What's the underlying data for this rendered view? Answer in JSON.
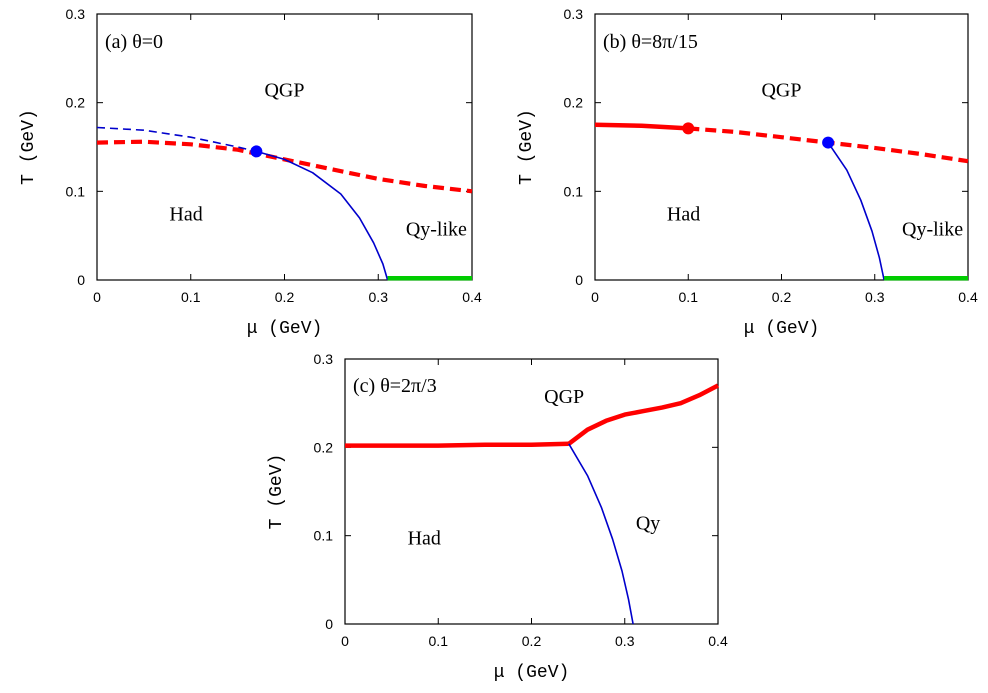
{
  "chart_data": [
    {
      "type": "line",
      "panel_label": "(a) θ=0",
      "xlabel": "μ (GeV)",
      "ylabel": "T (GeV)",
      "xlim": [
        0,
        0.4
      ],
      "ylim": [
        0,
        0.3
      ],
      "xticks": [
        "0",
        "0.1",
        "0.2",
        "0.3",
        "0.4"
      ],
      "yticks": [
        "0",
        "0.1",
        "0.2",
        "0.3"
      ],
      "regions": [
        {
          "text": "QGP",
          "x": 0.2,
          "y": 0.215
        },
        {
          "text": "Had",
          "x": 0.095,
          "y": 0.075
        },
        {
          "text": "Qy-like",
          "x": 0.362,
          "y": 0.058
        }
      ],
      "series": [
        {
          "style": "dashed",
          "color": "#ff0000",
          "x": [
            0,
            0.05,
            0.1,
            0.15,
            0.2,
            0.25,
            0.3,
            0.35,
            0.4
          ],
          "y": [
            0.155,
            0.156,
            0.153,
            0.147,
            0.136,
            0.125,
            0.114,
            0.106,
            0.1
          ]
        },
        {
          "style": "dashed-thin",
          "color": "#0000cc",
          "x": [
            0,
            0.05,
            0.1,
            0.15,
            0.17
          ],
          "y": [
            0.172,
            0.169,
            0.161,
            0.15,
            0.145
          ]
        },
        {
          "style": "solid-thin",
          "color": "#0000cc",
          "x": [
            0.17,
            0.2,
            0.23,
            0.26,
            0.28,
            0.295,
            0.305,
            0.31
          ],
          "y": [
            0.145,
            0.136,
            0.121,
            0.097,
            0.07,
            0.042,
            0.018,
            0.0
          ]
        },
        {
          "style": "solid-thick",
          "color": "#00cc00",
          "x": [
            0.31,
            0.4
          ],
          "y": [
            0.002,
            0.002
          ]
        }
      ],
      "points": [
        {
          "x": 0.17,
          "y": 0.145,
          "color": "#0000ff"
        }
      ]
    },
    {
      "type": "line",
      "panel_label": "(b) θ=8π/15",
      "xlabel": "μ (GeV)",
      "ylabel": "T (GeV)",
      "xlim": [
        0,
        0.4
      ],
      "ylim": [
        0,
        0.3
      ],
      "xticks": [
        "0",
        "0.1",
        "0.2",
        "0.3",
        "0.4"
      ],
      "yticks": [
        "0",
        "0.1",
        "0.2",
        "0.3"
      ],
      "regions": [
        {
          "text": "QGP",
          "x": 0.2,
          "y": 0.215
        },
        {
          "text": "Had",
          "x": 0.095,
          "y": 0.075
        },
        {
          "text": "Qy-like",
          "x": 0.362,
          "y": 0.058
        }
      ],
      "series": [
        {
          "style": "solid",
          "color": "#ff0000",
          "x": [
            0,
            0.05,
            0.1
          ],
          "y": [
            0.175,
            0.174,
            0.171
          ]
        },
        {
          "style": "dashed",
          "color": "#ff0000",
          "x": [
            0.1,
            0.15,
            0.2,
            0.25,
            0.3,
            0.35,
            0.4
          ],
          "y": [
            0.171,
            0.167,
            0.161,
            0.155,
            0.149,
            0.142,
            0.134
          ]
        },
        {
          "style": "solid-thin",
          "color": "#0000cc",
          "x": [
            0.25,
            0.27,
            0.285,
            0.297,
            0.305,
            0.31
          ],
          "y": [
            0.155,
            0.124,
            0.09,
            0.055,
            0.025,
            0.0
          ]
        },
        {
          "style": "solid-thick",
          "color": "#00cc00",
          "x": [
            0.31,
            0.4
          ],
          "y": [
            0.002,
            0.002
          ]
        }
      ],
      "points": [
        {
          "x": 0.1,
          "y": 0.171,
          "color": "#ff0000"
        },
        {
          "x": 0.25,
          "y": 0.155,
          "color": "#0000ff"
        }
      ]
    },
    {
      "type": "line",
      "panel_label": "(c) θ=2π/3",
      "xlabel": "μ (GeV)",
      "ylabel": "T (GeV)",
      "xlim": [
        0,
        0.4
      ],
      "ylim": [
        0,
        0.3
      ],
      "xticks": [
        "0",
        "0.1",
        "0.2",
        "0.3",
        "0.4"
      ],
      "yticks": [
        "0",
        "0.1",
        "0.2",
        "0.3"
      ],
      "regions": [
        {
          "text": "QGP",
          "x": 0.235,
          "y": 0.258
        },
        {
          "text": "Had",
          "x": 0.085,
          "y": 0.098
        },
        {
          "text": "Qy",
          "x": 0.325,
          "y": 0.115
        }
      ],
      "series": [
        {
          "style": "solid",
          "color": "#ff0000",
          "x": [
            0,
            0.05,
            0.1,
            0.15,
            0.2,
            0.24
          ],
          "y": [
            0.202,
            0.202,
            0.202,
            0.203,
            0.203,
            0.204
          ]
        },
        {
          "style": "solid",
          "color": "#ff0000",
          "x": [
            0.24,
            0.26,
            0.28,
            0.3,
            0.32,
            0.34,
            0.36,
            0.38,
            0.4
          ],
          "y": [
            0.204,
            0.22,
            0.23,
            0.237,
            0.241,
            0.245,
            0.25,
            0.259,
            0.27
          ]
        },
        {
          "style": "solid-thin",
          "color": "#0000cc",
          "x": [
            0.24,
            0.26,
            0.275,
            0.287,
            0.297,
            0.304,
            0.309
          ],
          "y": [
            0.204,
            0.168,
            0.132,
            0.096,
            0.06,
            0.028,
            0.0
          ]
        }
      ],
      "points": []
    }
  ]
}
